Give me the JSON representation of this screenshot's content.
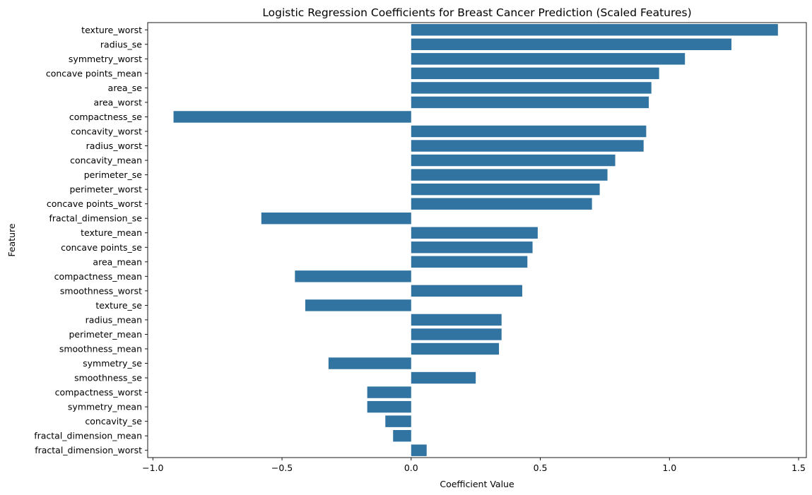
{
  "chart_data": {
    "type": "bar",
    "orientation": "horizontal",
    "title": "Logistic Regression Coefficients for Breast Cancer Prediction (Scaled Features)",
    "xlabel": "Coefficient Value",
    "ylabel": "Feature",
    "xlim": [
      -1.02,
      1.53
    ],
    "xticks": [
      -1.0,
      -0.5,
      0.0,
      0.5,
      1.0,
      1.5
    ],
    "xtick_labels": [
      "−1.0",
      "−0.5",
      "0.0",
      "0.5",
      "1.0",
      "1.5"
    ],
    "grid": false,
    "bar_color": "#3274a1",
    "categories": [
      "texture_worst",
      "radius_se",
      "symmetry_worst",
      "concave points_mean",
      "area_se",
      "area_worst",
      "compactness_se",
      "concavity_worst",
      "radius_worst",
      "concavity_mean",
      "perimeter_se",
      "perimeter_worst",
      "concave points_worst",
      "fractal_dimension_se",
      "texture_mean",
      "concave points_se",
      "area_mean",
      "compactness_mean",
      "smoothness_worst",
      "texture_se",
      "radius_mean",
      "perimeter_mean",
      "smoothness_mean",
      "symmetry_se",
      "smoothness_se",
      "compactness_worst",
      "symmetry_mean",
      "concavity_se",
      "fractal_dimension_mean",
      "fractal_dimension_worst"
    ],
    "values": [
      1.42,
      1.24,
      1.06,
      0.96,
      0.93,
      0.92,
      -0.92,
      0.91,
      0.9,
      0.79,
      0.76,
      0.73,
      0.7,
      -0.58,
      0.49,
      0.47,
      0.45,
      -0.45,
      0.43,
      -0.41,
      0.35,
      0.35,
      0.34,
      -0.32,
      0.25,
      -0.17,
      -0.17,
      -0.1,
      -0.07,
      0.06
    ]
  }
}
